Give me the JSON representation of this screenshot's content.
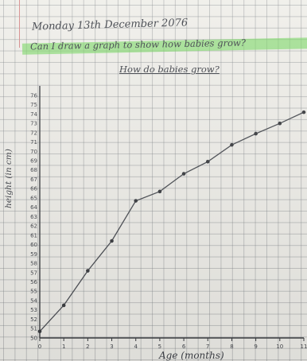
{
  "header": {
    "date": "Monday 13th December 2076",
    "learning_objective": "Can I draw a graph to show how babies grow?"
  },
  "colors": {
    "ink": "#3e4148",
    "highlighter": "#76d660",
    "grid": "#787d82",
    "margin": "#d58a8a"
  },
  "chart_data": {
    "type": "line",
    "title": "How do babies grow?",
    "xlabel": "Age (months)",
    "ylabel": "height (in cm)",
    "x_ticks": [
      0,
      1,
      2,
      3,
      4,
      5,
      6,
      7,
      8,
      9,
      10,
      11
    ],
    "x_tick_labels": [
      "0",
      "1",
      "2",
      "3",
      "4",
      "5",
      "6",
      "7",
      "8",
      "9",
      "10",
      "11"
    ],
    "y_ticks": [
      50,
      51,
      52,
      53,
      54,
      55,
      56,
      57,
      58,
      59,
      60,
      61,
      62,
      63,
      64,
      65,
      66,
      67,
      68,
      69,
      70,
      71,
      72,
      73,
      74,
      75,
      76
    ],
    "y_tick_labels": [
      "50",
      "51",
      "52",
      "53",
      "54",
      "55",
      "56",
      "57",
      "58",
      "59",
      "60",
      "61",
      "62",
      "63",
      "64",
      "65",
      "66",
      "67",
      "68",
      "69",
      "70",
      "71",
      "72",
      "73",
      "74",
      "75",
      "76"
    ],
    "xlim": [
      0,
      11
    ],
    "ylim": [
      50,
      76
    ],
    "grid": true,
    "series": [
      {
        "x": [
          0,
          1,
          2,
          3,
          4,
          5,
          6,
          7,
          8,
          9,
          10,
          11
        ],
        "y": [
          50.7,
          53.5,
          57.2,
          60.4,
          64.7,
          65.7,
          67.6,
          68.9,
          70.7,
          71.9,
          73.0,
          74.2
        ]
      }
    ]
  }
}
